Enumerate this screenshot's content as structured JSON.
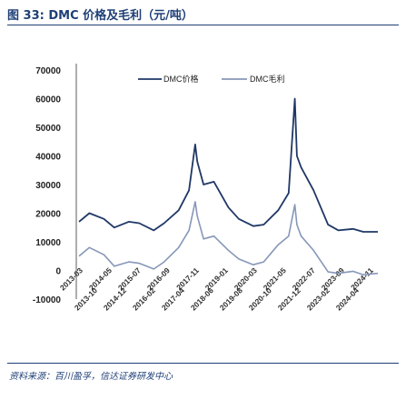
{
  "figure": {
    "title": "图 33:  DMC 价格及毛利（元/吨）",
    "source": "资料来源：百川盈孚，信达证券研发中心"
  },
  "colors": {
    "price": "#1f3766",
    "margin": "#8797b8",
    "title": "#1f3f76"
  },
  "chart_data": {
    "type": "line",
    "xlabel": "",
    "ylabel": "",
    "ylim": [
      -10000,
      70000
    ],
    "yticks": [
      70000,
      60000,
      50000,
      40000,
      30000,
      20000,
      10000,
      0,
      -10000
    ],
    "ytick_labels": [
      "70000",
      "60000",
      "50000",
      "40000",
      "30000",
      "20000",
      "10000",
      "0",
      "-10000"
    ],
    "x_tick_labels": [
      "2013-03",
      "2013-10",
      "2014-05",
      "2014-12",
      "2015-07",
      "2016-02",
      "2016-09",
      "2017-04",
      "2017-11",
      "2018-06",
      "2019-01",
      "2019-08",
      "2020-03",
      "2020-10",
      "2021-05",
      "2021-12",
      "2022-07",
      "2023-02",
      "2023-09",
      "2024-04",
      "2024-11"
    ],
    "legend_position": "top",
    "grid": false,
    "x": [
      "2013-01",
      "2013-06",
      "2014-01",
      "2014-06",
      "2015-01",
      "2015-06",
      "2016-01",
      "2016-06",
      "2017-01",
      "2017-06",
      "2017-09",
      "2017-10",
      "2018-01",
      "2018-06",
      "2019-01",
      "2019-06",
      "2020-01",
      "2020-06",
      "2021-01",
      "2021-06",
      "2021-09",
      "2021-10",
      "2021-12",
      "2022-06",
      "2023-01",
      "2023-06",
      "2024-01",
      "2024-06",
      "2025-01"
    ],
    "series": [
      {
        "name": "DMC价格",
        "values": [
          17000,
          20000,
          18000,
          15000,
          17000,
          16500,
          14000,
          16500,
          21000,
          28000,
          44000,
          38000,
          30000,
          31000,
          22000,
          18000,
          15500,
          16000,
          21000,
          27000,
          60000,
          40000,
          36000,
          28000,
          16000,
          14000,
          14500,
          13500,
          13500
        ]
      },
      {
        "name": "DMC毛利",
        "values": [
          5000,
          8000,
          5500,
          1500,
          3000,
          2500,
          500,
          3000,
          8000,
          14000,
          24000,
          19000,
          11000,
          12000,
          7000,
          4000,
          2000,
          3000,
          9000,
          12000,
          23000,
          16000,
          12000,
          7000,
          -500,
          -1000,
          -300,
          -1500,
          -1000
        ]
      }
    ]
  }
}
